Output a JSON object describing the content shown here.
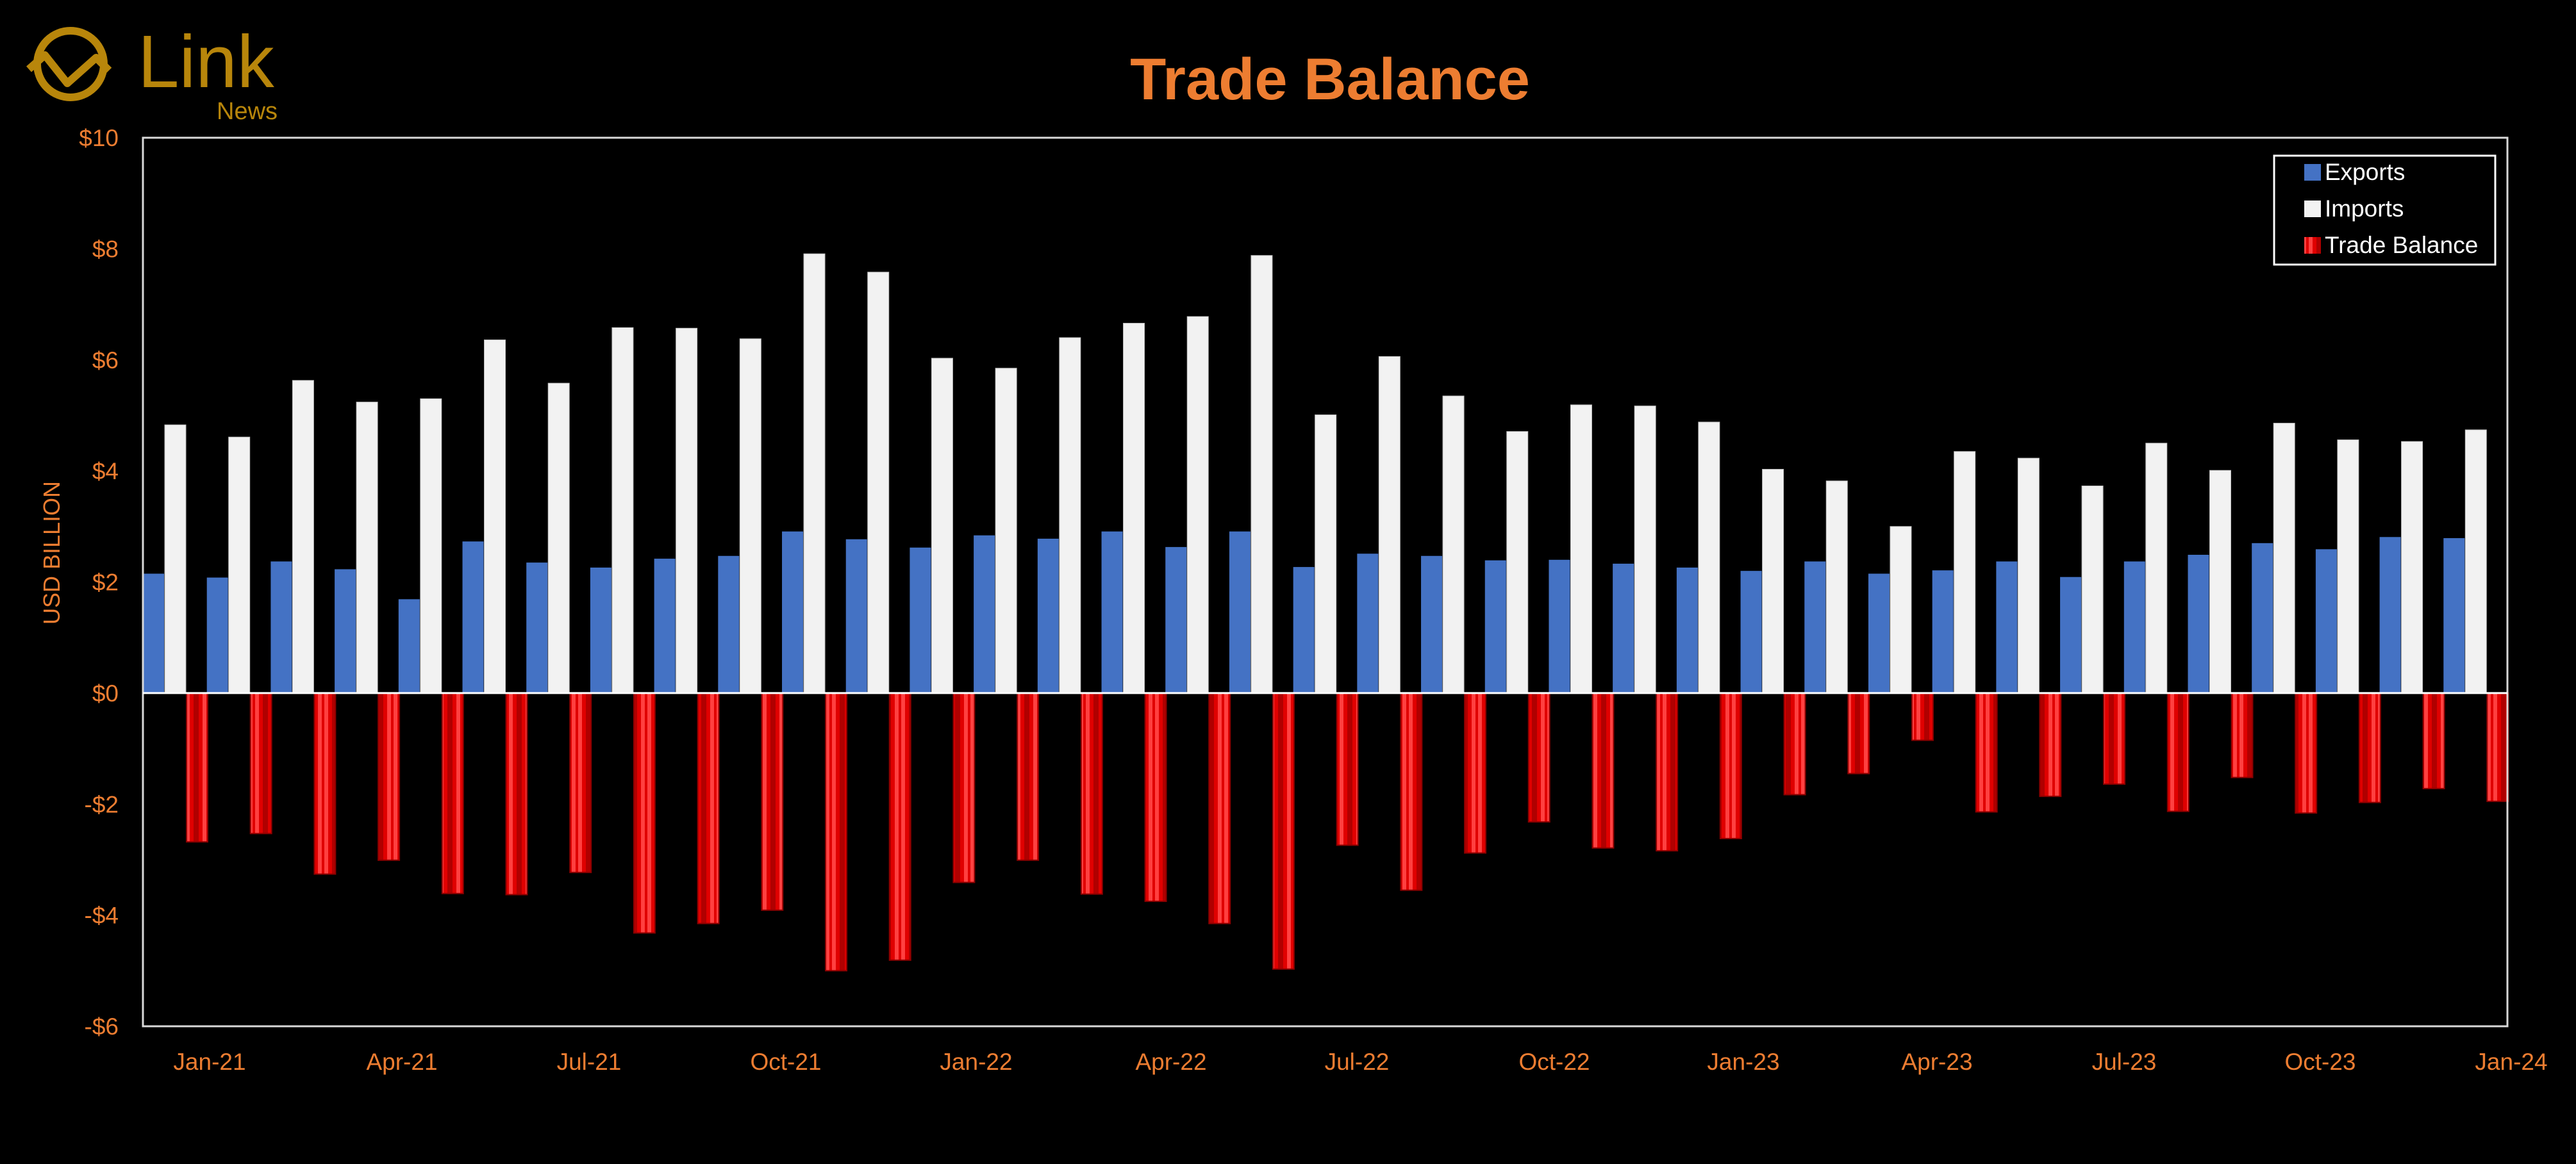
{
  "logo": {
    "brand": "Link",
    "sub": "News"
  },
  "colors": {
    "accent": "#ED7D31",
    "exports": "#4472C4",
    "imports": "#F2F2F2",
    "balance": "#FF0000",
    "background": "#000000",
    "axis": "#FFFFFF"
  },
  "chart_data": {
    "type": "bar",
    "title": "Trade Balance",
    "ylabel": "USD BILLION",
    "xlabel": "",
    "ylim": [
      -6,
      10
    ],
    "y_ticks": [
      -6,
      -4,
      -2,
      0,
      2,
      4,
      6,
      8,
      10
    ],
    "y_tick_labels": [
      "-$6",
      "-$4",
      "-$2",
      "$0",
      "$2",
      "$4",
      "$6",
      "$8",
      "$10"
    ],
    "x_tick_labels": [
      "Jan-21",
      "Apr-21",
      "Jul-21",
      "Oct-21",
      "Jan-22",
      "Apr-22",
      "Jul-22",
      "Oct-22",
      "Jan-23",
      "Apr-23",
      "Jul-23",
      "Oct-23",
      "Jan-24"
    ],
    "legend_position": "top-right",
    "grid": false,
    "categories": [
      "Jan-21",
      "Feb-21",
      "Mar-21",
      "Apr-21",
      "May-21",
      "Jun-21",
      "Jul-21",
      "Aug-21",
      "Sep-21",
      "Oct-21",
      "Nov-21",
      "Dec-21",
      "Jan-22",
      "Feb-22",
      "Mar-22",
      "Apr-22",
      "May-22",
      "Jun-22",
      "Jul-22",
      "Aug-22",
      "Sep-22",
      "Oct-22",
      "Nov-22",
      "Dec-22",
      "Jan-23",
      "Feb-23",
      "Mar-23",
      "Apr-23",
      "May-23",
      "Jun-23",
      "Jul-23",
      "Aug-23",
      "Sep-23",
      "Oct-23",
      "Nov-23",
      "Dec-23",
      "Jan-24"
    ],
    "series": [
      {
        "name": "Exports",
        "values": [
          2.15,
          2.08,
          2.37,
          2.23,
          1.69,
          2.73,
          2.35,
          2.26,
          2.42,
          2.47,
          2.91,
          2.77,
          2.62,
          2.84,
          2.78,
          2.91,
          2.63,
          2.91,
          2.27,
          2.51,
          2.47,
          2.39,
          2.4,
          2.33,
          2.26,
          2.2,
          2.37,
          2.15,
          2.21,
          2.37,
          2.09,
          2.37,
          2.49,
          2.7,
          2.59,
          2.81,
          2.79
        ]
      },
      {
        "name": "Imports",
        "values": [
          4.83,
          4.61,
          5.63,
          5.24,
          5.3,
          6.36,
          5.58,
          6.58,
          6.57,
          6.38,
          7.91,
          7.58,
          6.03,
          5.85,
          6.4,
          6.66,
          6.78,
          7.88,
          5.01,
          6.06,
          5.35,
          4.71,
          5.19,
          5.17,
          4.88,
          4.03,
          3.82,
          3.0,
          4.35,
          4.23,
          3.73,
          4.5,
          4.01,
          4.86,
          4.56,
          4.53,
          4.74
        ]
      },
      {
        "name": "Trade Balance",
        "values": [
          -2.68,
          -2.53,
          -3.26,
          -3.01,
          -3.61,
          -3.63,
          -3.23,
          -4.32,
          -4.15,
          -3.91,
          -5.0,
          -4.81,
          -3.41,
          -3.01,
          -3.62,
          -3.75,
          -4.15,
          -4.97,
          -2.74,
          -3.55,
          -2.88,
          -2.32,
          -2.79,
          -2.84,
          -2.62,
          -1.83,
          -1.45,
          -0.85,
          -2.14,
          -1.86,
          -1.64,
          -2.13,
          -1.52,
          -2.16,
          -1.97,
          -1.72,
          -1.95
        ]
      }
    ]
  }
}
